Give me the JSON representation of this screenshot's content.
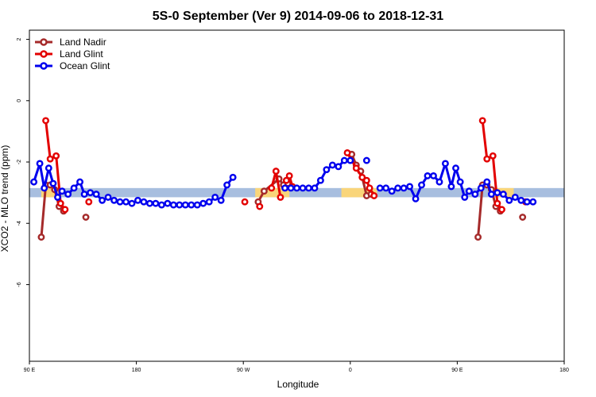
{
  "chart_data": {
    "type": "line",
    "title": "5S-0 September (Ver 9)   2014-09-06 to 2018-12-31",
    "xlabel": "Longitude",
    "ylabel": "XCO2 - MLO trend (ppm)",
    "x_ticks": [
      "90 E",
      "180",
      "90 W",
      "0",
      "90 E",
      "180"
    ],
    "y_ticks": [
      "2",
      "0",
      "-2",
      "-4",
      "-6"
    ],
    "xlim": [
      90,
      450
    ],
    "ylim": [
      -8.5,
      2.3
    ],
    "legend_position": "top-left",
    "band": {
      "ymin": -3.15,
      "ymax": -2.85,
      "color": "#a8bedf",
      "land_color": "#f9d57a"
    },
    "land_band_segments": [
      [
        98,
        108
      ],
      [
        242,
        265
      ],
      [
        300,
        324
      ],
      [
        402,
        416
      ]
    ],
    "series": [
      {
        "name": "Land Nadir",
        "color": "#a52a2a",
        "segments": [
          [
            [
              98,
              -4.45
            ],
            [
              101,
              -2.75
            ],
            [
              104,
              -2.75
            ],
            [
              107,
              -2.9
            ],
            [
              110,
              -3.45
            ],
            [
              113,
              -3.6
            ]
          ],
          [
            [
              128,
              -3.8
            ]
          ],
          [
            [
              244,
              -3.3
            ],
            [
              248,
              -2.95
            ],
            [
              258,
              -2.55
            ],
            [
              261,
              -2.75
            ],
            [
              264,
              -2.7
            ]
          ],
          [
            [
              307,
              -1.75
            ],
            [
              310,
              -2.1
            ],
            [
              313,
              -2.3
            ],
            [
              317,
              -3.1
            ],
            [
              320,
              -3.05
            ]
          ],
          [
            [
              392,
              -4.45
            ],
            [
              395,
              -2.75
            ],
            [
              398,
              -2.75
            ],
            [
              401,
              -2.9
            ],
            [
              404,
              -3.45
            ],
            [
              407,
              -3.6
            ]
          ],
          [
            [
              422,
              -3.8
            ]
          ]
        ]
      },
      {
        "name": "Land Glint",
        "color": "#e30000",
        "segments": [
          [
            [
              101,
              -0.65
            ],
            [
              104,
              -1.9
            ],
            [
              108,
              -1.8
            ],
            [
              111,
              -3.35
            ],
            [
              114,
              -3.55
            ]
          ],
          [
            [
              130,
              -3.3
            ]
          ],
          [
            [
              235,
              -3.3
            ]
          ],
          [
            [
              245,
              -3.45
            ]
          ],
          [
            [
              253,
              -2.85
            ],
            [
              256,
              -2.3
            ],
            [
              259,
              -3.15
            ]
          ],
          [
            [
              263,
              -2.6
            ],
            [
              265,
              -2.45
            ],
            [
              267,
              -2.8
            ]
          ],
          [
            [
              304,
              -1.7
            ],
            [
              310,
              -2.2
            ],
            [
              314,
              -2.5
            ],
            [
              317,
              -2.6
            ],
            [
              319,
              -2.85
            ],
            [
              322,
              -3.1
            ]
          ],
          [
            [
              395,
              -0.65
            ],
            [
              398,
              -1.9
            ],
            [
              402,
              -1.8
            ],
            [
              405,
              -3.35
            ],
            [
              408,
              -3.55
            ]
          ],
          [
            [
              424,
              -3.3
            ]
          ]
        ]
      },
      {
        "name": "Ocean Glint",
        "color": "#0000ee",
        "segments": [
          [
            [
              93,
              -2.65
            ],
            [
              97,
              -2.05
            ],
            [
              100,
              -2.85
            ],
            [
              103,
              -2.2
            ],
            [
              106,
              -2.7
            ],
            [
              109,
              -3.15
            ],
            [
              112,
              -2.95
            ],
            [
              116,
              -3.05
            ],
            [
              120,
              -2.85
            ],
            [
              124,
              -2.65
            ],
            [
              127,
              -3.05
            ],
            [
              131,
              -3.0
            ],
            [
              135,
              -3.05
            ],
            [
              139,
              -3.25
            ],
            [
              143,
              -3.15
            ],
            [
              147,
              -3.25
            ],
            [
              151,
              -3.3
            ],
            [
              155,
              -3.3
            ],
            [
              159,
              -3.35
            ],
            [
              163,
              -3.25
            ],
            [
              167,
              -3.3
            ],
            [
              171,
              -3.35
            ],
            [
              175,
              -3.35
            ],
            [
              179,
              -3.4
            ],
            [
              183,
              -3.35
            ],
            [
              187,
              -3.4
            ],
            [
              191,
              -3.4
            ],
            [
              195,
              -3.4
            ],
            [
              199,
              -3.4
            ],
            [
              203,
              -3.4
            ],
            [
              207,
              -3.35
            ],
            [
              211,
              -3.3
            ],
            [
              215,
              -3.15
            ],
            [
              219,
              -3.25
            ],
            [
              223,
              -2.75
            ],
            [
              227,
              -2.5
            ]
          ],
          [
            [
              262,
              -2.85
            ],
            [
              266,
              -2.85
            ],
            [
              270,
              -2.85
            ],
            [
              274,
              -2.85
            ],
            [
              278,
              -2.85
            ],
            [
              282,
              -2.85
            ],
            [
              286,
              -2.6
            ],
            [
              290,
              -2.25
            ],
            [
              294,
              -2.1
            ],
            [
              298,
              -2.15
            ],
            [
              302,
              -1.95
            ],
            [
              306,
              -1.95
            ]
          ],
          [
            [
              317,
              -1.95
            ]
          ],
          [
            [
              326,
              -2.85
            ],
            [
              330,
              -2.85
            ],
            [
              334,
              -2.95
            ],
            [
              338,
              -2.85
            ],
            [
              342,
              -2.85
            ],
            [
              346,
              -2.8
            ],
            [
              350,
              -3.2
            ],
            [
              354,
              -2.75
            ],
            [
              358,
              -2.45
            ],
            [
              362,
              -2.45
            ],
            [
              366,
              -2.65
            ],
            [
              370,
              -2.05
            ],
            [
              374,
              -2.8
            ],
            [
              377,
              -2.2
            ],
            [
              380,
              -2.65
            ],
            [
              383,
              -3.15
            ],
            [
              386,
              -2.95
            ],
            [
              390,
              -3.05
            ],
            [
              394,
              -2.85
            ],
            [
              398,
              -2.65
            ],
            [
              401,
              -3.05
            ],
            [
              405,
              -3.0
            ],
            [
              409,
              -3.05
            ],
            [
              413,
              -3.25
            ],
            [
              417,
              -3.15
            ],
            [
              421,
              -3.25
            ],
            [
              425,
              -3.3
            ],
            [
              429,
              -3.3
            ]
          ]
        ]
      }
    ]
  }
}
